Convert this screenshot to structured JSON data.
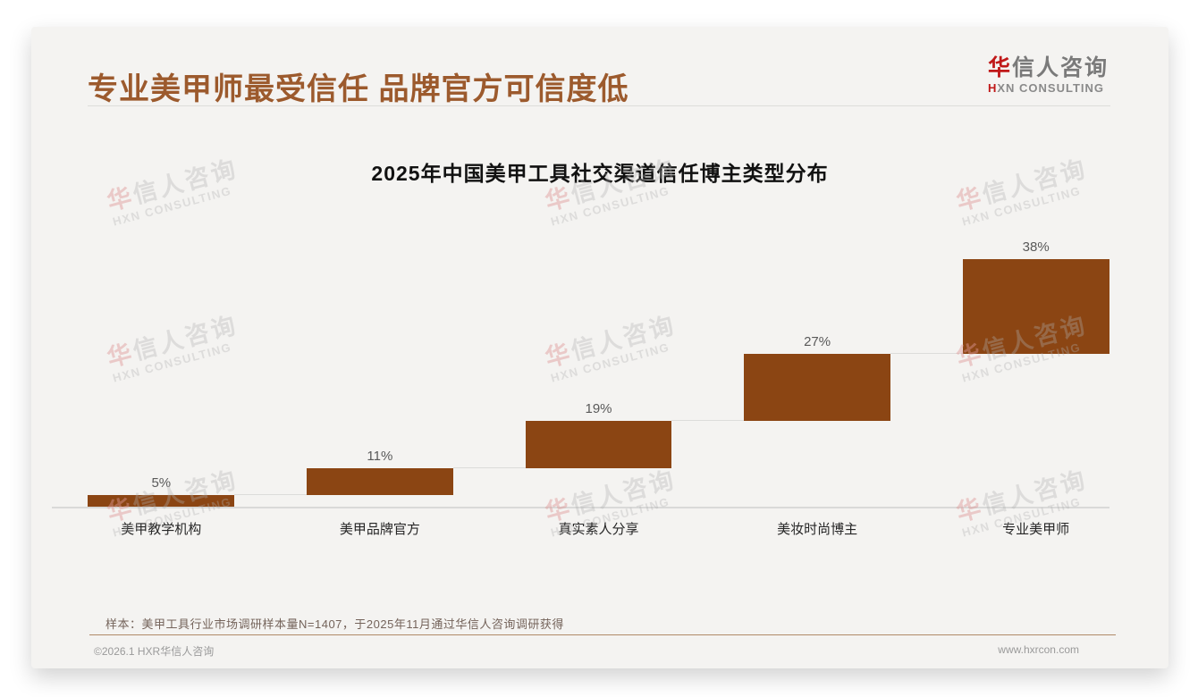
{
  "header": {
    "title": "专业美甲师最受信任 品牌官方可信度低",
    "logo": {
      "zh_accent": "华",
      "zh_rest": "信人咨询",
      "en_accent": "H",
      "en_rest": "XN CONSULTING"
    }
  },
  "chart_data": {
    "type": "bar",
    "subtype": "waterfall-steps",
    "title": "2025年中国美甲工具社交渠道信任博主类型分布",
    "categories": [
      "美甲教学机构",
      "美甲品牌官方",
      "真实素人分享",
      "美妆时尚博主",
      "专业美甲师"
    ],
    "values": [
      5,
      11,
      19,
      27,
      38
    ],
    "data_labels": [
      "5%",
      "11%",
      "19%",
      "27%",
      "38%"
    ],
    "cumulative": [
      5,
      16,
      35,
      62,
      100
    ],
    "unit": "%",
    "ylim": [
      0,
      100
    ],
    "grid": false,
    "legend": "none",
    "bar_color": "#8B4513",
    "data_label_color": "#595959",
    "category_label_color": "#262626",
    "connector_color": "#DCDCDA",
    "baseline_color": "#D9D9D8"
  },
  "watermark": {
    "zh_accent": "华",
    "zh_rest": "信人咨询",
    "en": "HXN CONSULTING"
  },
  "footer": {
    "sample_note": "样本：美甲工具行业市场调研样本量N=1407，于2025年11月通过华信人咨询调研获得",
    "copyright": "©2026.1 HXR华信人咨询",
    "website": "www.hxrcon.com"
  },
  "colors": {
    "title_brown": "#9C5A2D",
    "logo_red": "#C01818",
    "logo_gray": "#7A7A7A",
    "bar_brown": "#8B4513",
    "note_brown": "#74635A",
    "footer_divider_tan": "#B08A68",
    "footer_gray": "#9A9A9A",
    "card_background": "#F4F3F1"
  }
}
